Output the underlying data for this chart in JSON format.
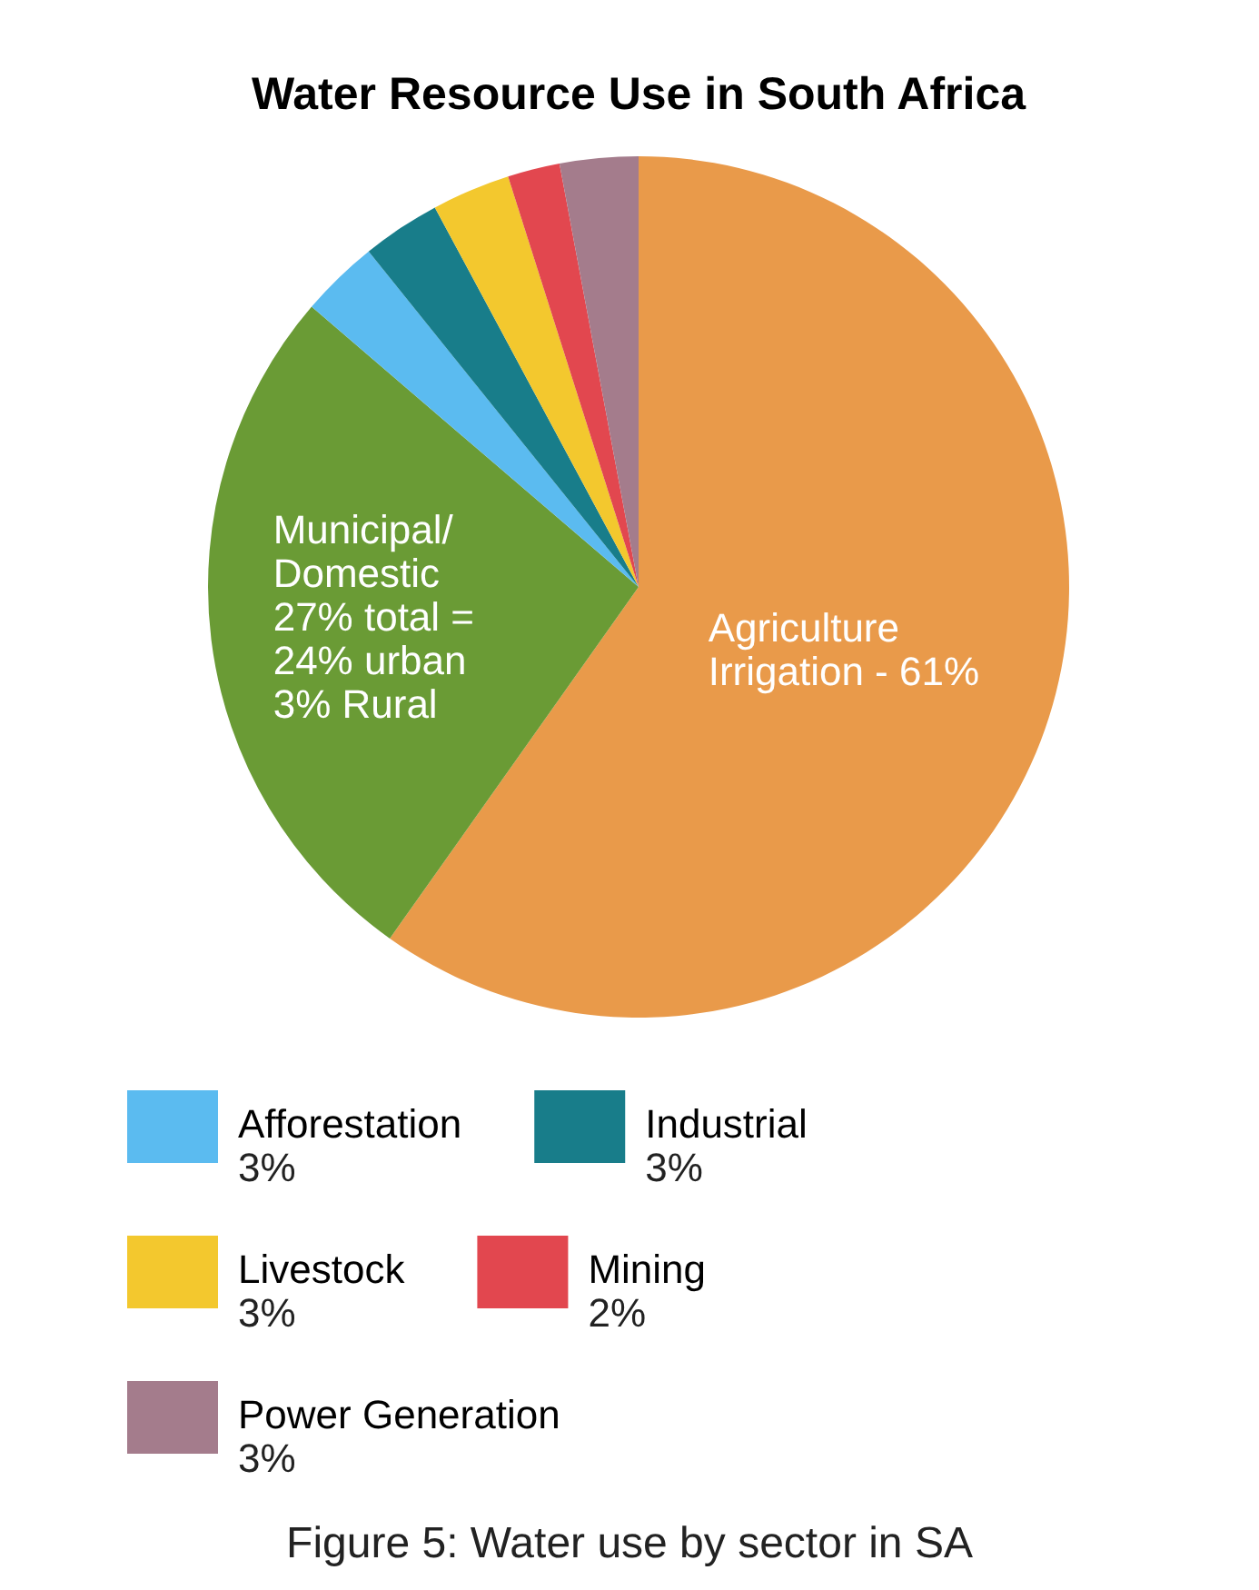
{
  "chart_data": {
    "type": "pie",
    "title": "Water Resource Use in South Africa",
    "categories": [
      "Agriculture\nIrrigation - 61%",
      "Municipal/\nDomestic\n27% total =\n24% urban\n3% Rural",
      "Afforestation",
      "Industrial",
      "Livestock",
      "Mining",
      "Power\nGeneration"
    ],
    "values": [
      61,
      27,
      3,
      3,
      3,
      2,
      3
    ],
    "value_labels": [
      null,
      null,
      "3%",
      "3%",
      "3%",
      "2%",
      "3%"
    ],
    "colors": [
      "#e99a4a",
      "#6a9b35",
      "#5bbbf0",
      "#187d8a",
      "#f3c82e",
      "#e2474f",
      "#a47c8c"
    ],
    "legend": "bottom",
    "annotations": [
      "Figure 5: Water use by sector in SA"
    ]
  }
}
